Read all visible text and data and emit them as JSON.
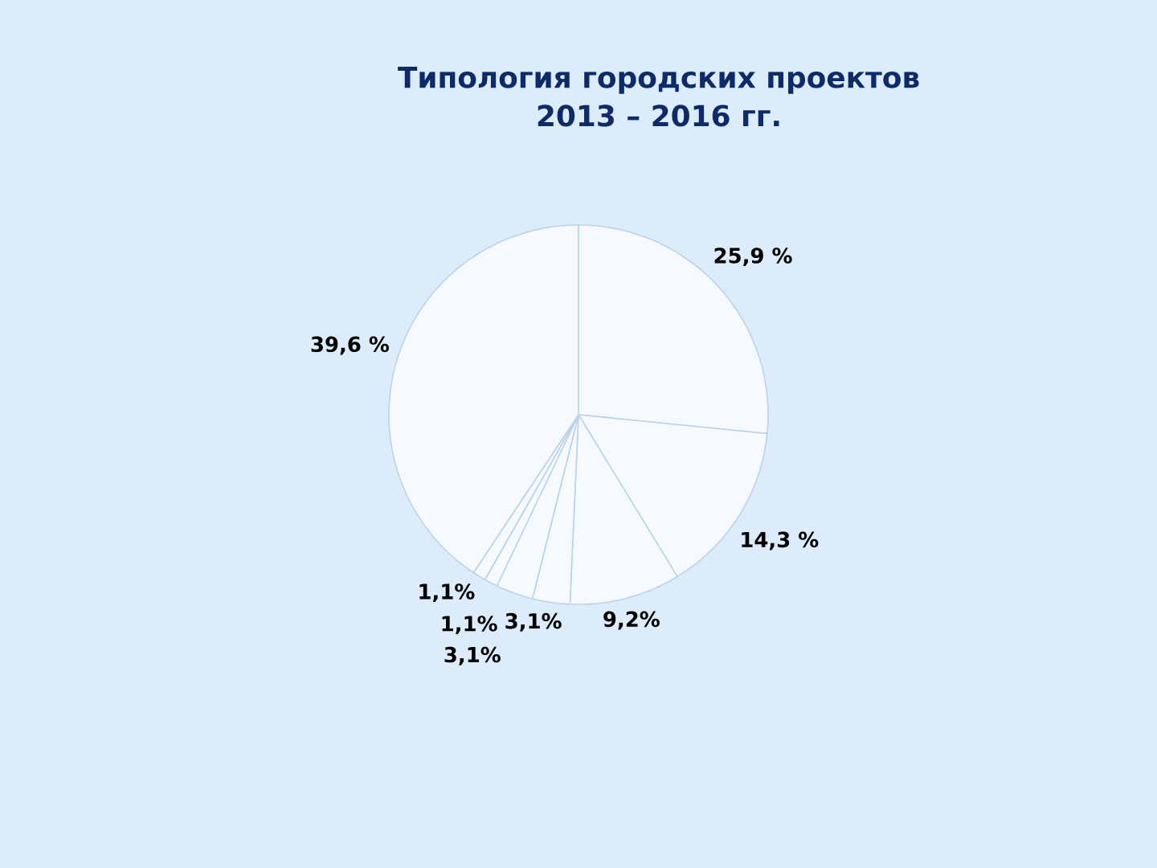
{
  "chart_data": {
    "type": "pie",
    "title": "Типология городских проектов 2013 – 2016 гг.",
    "categories": [
      null,
      null,
      null,
      null,
      null,
      null,
      null,
      null
    ],
    "values": [
      25.9,
      14.3,
      9.2,
      3.1,
      3.1,
      1.1,
      1.1,
      39.6
    ],
    "value_labels": [
      "25,9 %",
      "14,3 %",
      "9,2%",
      "3,1%",
      "3,1%",
      "1,1%",
      "1,1%",
      "39,6 %"
    ],
    "colors": [
      "#f6faff",
      "#f6faff",
      "#f6faff",
      "#f6faff",
      "#f6faff",
      "#f6faff",
      "#f6faff",
      "#f6faff"
    ]
  }
}
